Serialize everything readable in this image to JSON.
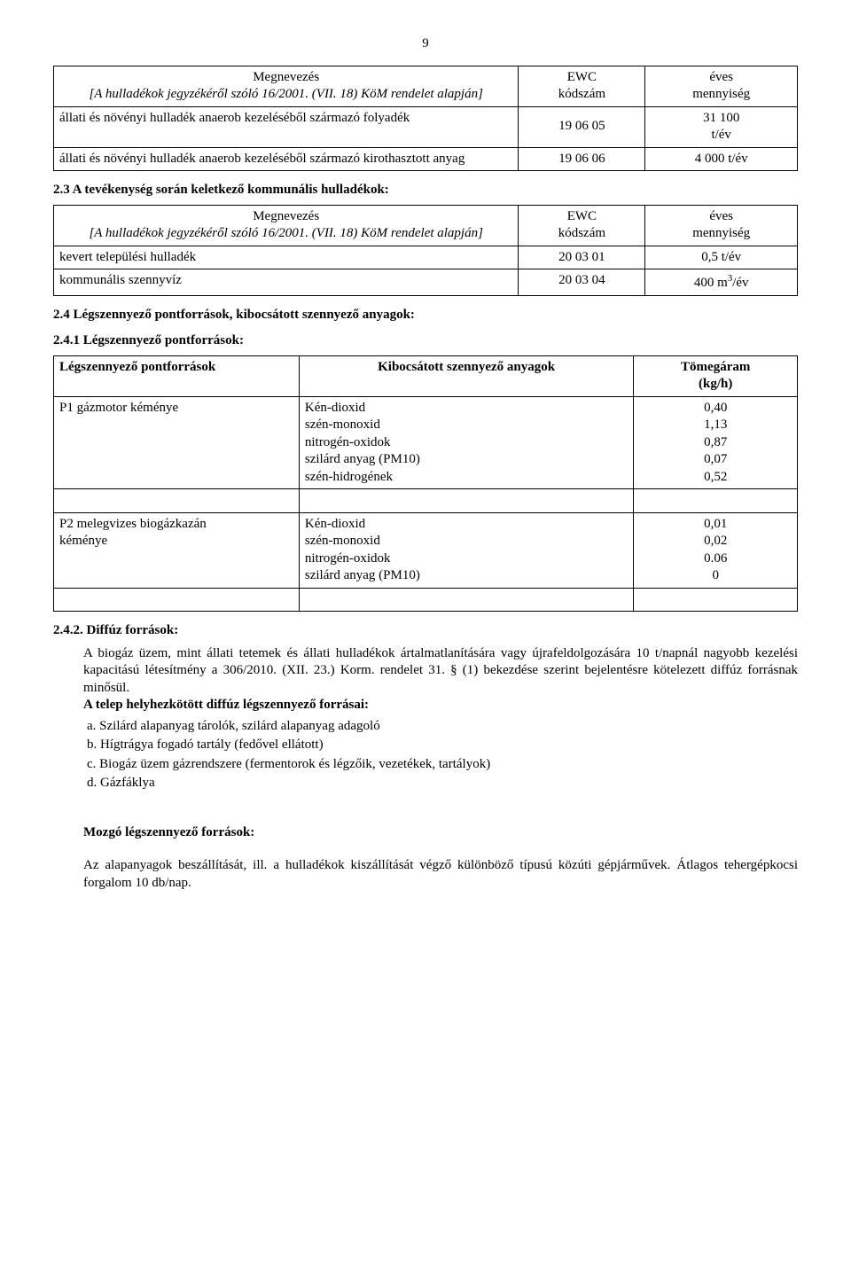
{
  "page_number": "9",
  "table1": {
    "header": {
      "name_line1": "Megnevezés",
      "name_line2": "[A hulladékok jegyzékéről szóló 16/2001. (VII. 18) KöM rendelet alapján]",
      "code_line1": "EWC",
      "code_line2": "kódszám",
      "qty_line1": "éves",
      "qty_line2": "mennyiség"
    },
    "rows": [
      {
        "name": "állati és növényi hulladék anaerob kezeléséből származó folyadék",
        "code": "19 06 05",
        "qty_line1": "31 100",
        "qty_line2": "t/év"
      },
      {
        "name": "állati és növényi hulladék anaerob kezeléséből származó kirothasztott anyag",
        "code": "19 06 06",
        "qty": "4 000 t/év"
      }
    ]
  },
  "section_2_3": "2.3  A tevékenység során keletkező kommunális hulladékok:",
  "table2": {
    "header": {
      "name_line1": "Megnevezés",
      "name_line2": "[A hulladékok jegyzékéről szóló 16/2001. (VII. 18) KöM rendelet alapján]",
      "code_line1": "EWC",
      "code_line2": "kódszám",
      "qty_line1": "éves",
      "qty_line2": "mennyiség"
    },
    "rows": [
      {
        "name": "kevert települési hulladék",
        "code": "20 03 01",
        "qty": "0,5 t/év"
      },
      {
        "name": "kommunális szennyvíz",
        "code": "20 03 04",
        "qty_pre": "400 m",
        "qty_sup": "3",
        "qty_post": "/év"
      }
    ]
  },
  "section_2_4": "2.4  Légszennyező pontforrások, kibocsátott szennyező anyagok:",
  "section_2_4_1": "2.4.1 Légszennyező pontforrások:",
  "table3": {
    "header": {
      "c1": "Légszennyező pontforrások",
      "c2": "Kibocsátott szennyező anyagok",
      "c3_line1": "Tömegáram",
      "c3_line2": "(kg/h)"
    },
    "row1": {
      "c1": "P1 gázmotor kéménye",
      "c2_lines": [
        "Kén-dioxid",
        "szén-monoxid",
        "nitrogén-oxidok",
        "szilárd anyag (PM10)",
        "szén-hidrogének"
      ],
      "c3_lines": [
        "0,40",
        "1,13",
        "0,87",
        "0,07",
        "0,52"
      ]
    },
    "row2": {
      "c1_lines": [
        "P2 melegvizes biogázkazán",
        "kéménye"
      ],
      "c2_lines": [
        "Kén-dioxid",
        "szén-monoxid",
        "nitrogén-oxidok",
        "szilárd anyag (PM10)"
      ],
      "c3_lines": [
        "0,01",
        "0,02",
        "0.06",
        "0"
      ]
    }
  },
  "section_2_4_2": {
    "title": "2.4.2. Diffúz források:",
    "para": "A biogáz üzem, mint állati tetemek és állati hulladékok ártalmatlanítására vagy újrafeldolgozására 10 t/napnál nagyobb kezelési kapacitású létesítmény a 306/2010. (XII. 23.) Korm. rendelet 31. § (1) bekezdése szerint bejelentésre kötelezett diffúz forrásnak minősül.",
    "bold_line": "A telep helyhezkötött diffúz légszennyező forrásai:",
    "items": [
      "a.   Szilárd alapanyag tárolók, szilárd alapanyag adagoló",
      "b.   Hígtrágya fogadó tartály (fedővel ellátott)",
      "c.   Biogáz üzem gázrendszere (fermentorok és légzőik, vezetékek, tartályok)",
      "d.   Gázfáklya"
    ]
  },
  "moving_sources": {
    "title": "Mozgó légszennyező források:",
    "para": "Az alapanyagok beszállítását, ill. a hulladékok kiszállítását végző különböző típusú közúti gépjárművek. Átlagos tehergépkocsi forgalom 10 db/nap."
  }
}
